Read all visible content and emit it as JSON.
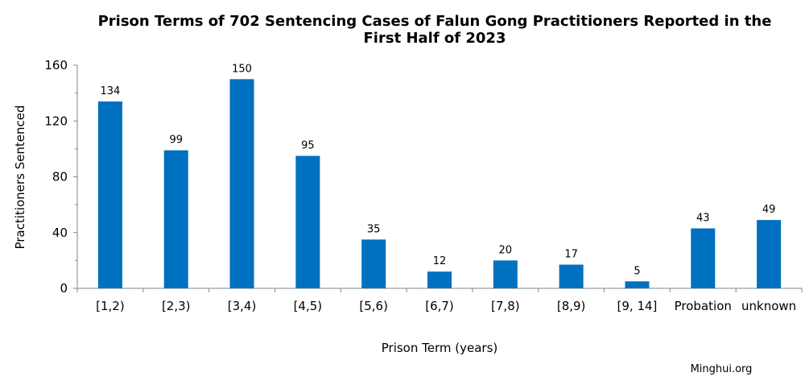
{
  "chart_data": {
    "type": "bar",
    "title_lines": [
      "Prison Terms of 702 Sentencing Cases of Falun Gong Practitioners Reported in the",
      "First Half of 2023"
    ],
    "xlabel": "Prison Term (years)",
    "ylabel": "Practitioners Sentenced",
    "categories": [
      "[1,2)",
      "[2,3)",
      "[3,4)",
      "[4,5)",
      "[5,6)",
      "[6,7)",
      "[7,8)",
      "[8,9)",
      "[9, 14]",
      "Probation",
      "unknown"
    ],
    "values": [
      134,
      99,
      150,
      95,
      35,
      12,
      20,
      17,
      5,
      43,
      49
    ],
    "ylim": [
      0,
      160
    ],
    "yticks": [
      0,
      40,
      80,
      120,
      160
    ],
    "grid": false,
    "bar_color": "#0070C0",
    "source": "Minghui.org"
  }
}
